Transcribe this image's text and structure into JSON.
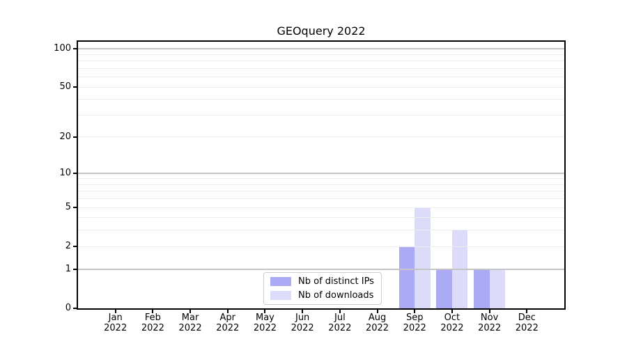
{
  "chart_data": {
    "type": "bar",
    "title": "GEOquery 2022",
    "months": [
      "Jan",
      "Feb",
      "Mar",
      "Apr",
      "May",
      "Jun",
      "Jul",
      "Aug",
      "Sep",
      "Oct",
      "Nov",
      "Dec"
    ],
    "year": "2022",
    "series": [
      {
        "name": "Nb of distinct IPs",
        "color": "#aaaaf5",
        "values": [
          0,
          0,
          0,
          0,
          0,
          0,
          0,
          0,
          2,
          1,
          1,
          0
        ]
      },
      {
        "name": "Nb of downloads",
        "color": "#dcdcfa",
        "values": [
          0,
          0,
          0,
          0,
          0,
          0,
          0,
          0,
          5,
          3,
          1,
          0
        ]
      }
    ],
    "y_axis": {
      "scale": "log1p",
      "tick_labels": [
        "0",
        "1",
        "2",
        "5",
        "10",
        "20",
        "50",
        "100"
      ],
      "tick_values": [
        0,
        1,
        2,
        5,
        10,
        20,
        50,
        100
      ],
      "range": [
        0,
        113
      ]
    },
    "grid": {
      "major_values": [
        1,
        10,
        100
      ],
      "minor_values": [
        2,
        3,
        4,
        5,
        6,
        7,
        8,
        9,
        20,
        30,
        40,
        50,
        60,
        70,
        80,
        90
      ],
      "major_color": "#c4c4c4",
      "minor_color": "#ededed",
      "drawn_above_bars": true
    },
    "legend": {
      "position": "lower center"
    }
  }
}
